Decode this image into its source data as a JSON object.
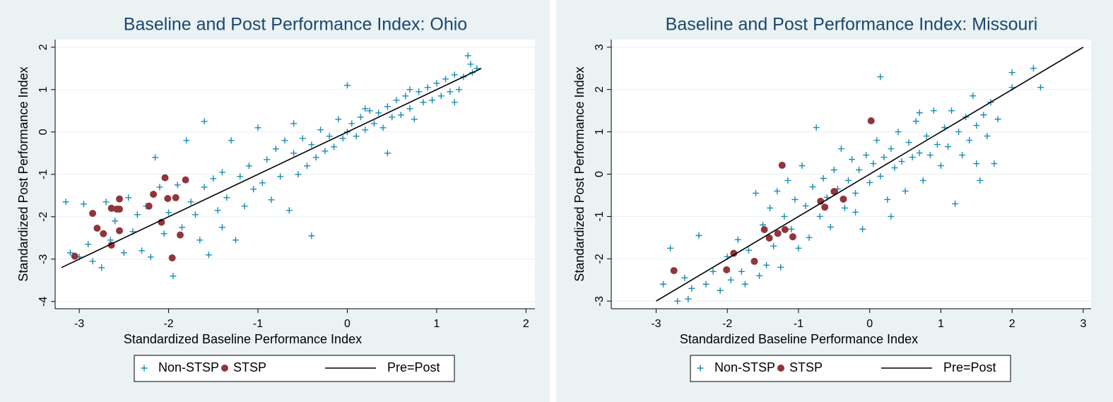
{
  "chart_data": [
    {
      "type": "scatter",
      "title": "Baseline and Post Performance Index: Ohio",
      "xlabel": "Standardized Baseline Performance Index",
      "ylabel": "Standardized Post Performance Index",
      "xlim": [
        -3.27,
        2.1
      ],
      "ylim": [
        -4.17,
        2.18
      ],
      "xticks": [
        -3,
        -2,
        -1,
        0,
        1,
        2
      ],
      "yticks": [
        -4,
        -3,
        -2,
        -1,
        0,
        1,
        2
      ],
      "grid": true,
      "legend": "bottom",
      "series": [
        {
          "name": "Non-STSP",
          "marker": "plus",
          "color": "#1a8bb3",
          "x": [
            -3.15,
            -3.1,
            -3.0,
            -2.95,
            -2.9,
            -2.85,
            -2.75,
            -2.7,
            -2.65,
            -2.6,
            -2.5,
            -2.45,
            -2.4,
            -2.35,
            -2.3,
            -2.25,
            -2.2,
            -2.15,
            -2.1,
            -2.05,
            -2.0,
            -1.95,
            -1.9,
            -1.85,
            -1.8,
            -1.75,
            -1.7,
            -1.65,
            -1.6,
            -1.55,
            -1.6,
            -1.5,
            -1.45,
            -1.4,
            -1.4,
            -1.35,
            -1.3,
            -1.25,
            -1.2,
            -1.15,
            -1.1,
            -1.05,
            -1.0,
            -0.95,
            -0.9,
            -0.85,
            -0.8,
            -0.75,
            -0.7,
            -0.65,
            -0.6,
            -0.55,
            -0.5,
            -0.45,
            -0.4,
            -0.4,
            -0.35,
            -0.3,
            -0.25,
            -0.2,
            -0.15,
            -0.1,
            -0.05,
            0,
            0,
            0.05,
            0.1,
            0.15,
            0.2,
            0.25,
            0.3,
            0.35,
            0.4,
            0.45,
            0.5,
            0.55,
            0.6,
            0.65,
            0.7,
            0.75,
            0.8,
            0.85,
            0.9,
            0.95,
            1.0,
            1.05,
            1.1,
            1.15,
            1.2,
            1.25,
            1.3,
            1.35,
            1.4,
            1.45,
            1.38,
            0.45,
            0.2,
            -0.6,
            1.2,
            0.7
          ],
          "values": [
            -1.65,
            -2.85,
            -2.95,
            -1.7,
            -2.65,
            -3.05,
            -3.2,
            -1.65,
            -2.55,
            -2.1,
            -2.85,
            -1.55,
            -2.35,
            -1.95,
            -2.8,
            -1.75,
            -2.95,
            -0.6,
            -1.3,
            -2.4,
            -1.9,
            -3.4,
            -1.25,
            -2.25,
            -0.2,
            -1.65,
            -1.95,
            -2.55,
            -1.3,
            -2.9,
            0.25,
            -1.1,
            -1.85,
            -0.95,
            -2.25,
            -1.55,
            -0.2,
            -2.55,
            -1.05,
            -1.75,
            -0.8,
            -1.35,
            0.1,
            -1.2,
            -0.65,
            -1.6,
            -0.4,
            -1.05,
            -0.2,
            -1.85,
            -0.5,
            -1.0,
            -0.15,
            -0.8,
            -2.45,
            -0.3,
            -0.6,
            0.05,
            -0.45,
            -0.1,
            -0.35,
            0.3,
            -0.15,
            1.1,
            0.0,
            0.2,
            -0.1,
            0.35,
            0.05,
            0.5,
            0.2,
            0.45,
            0.1,
            0.6,
            0.35,
            0.75,
            0.4,
            0.85,
            0.55,
            0.3,
            0.95,
            0.7,
            1.05,
            0.75,
            1.15,
            0.85,
            1.25,
            0.95,
            1.35,
            1.0,
            1.3,
            1.8,
            1.4,
            1.5,
            1.6,
            -0.5,
            0.55,
            0.2,
            0.7,
            1.0
          ]
        },
        {
          "name": "STSP",
          "marker": "circle",
          "color": "#90353b",
          "x": [
            -3.05,
            -2.85,
            -2.8,
            -2.73,
            -2.64,
            -2.64,
            -2.58,
            -2.55,
            -2.55,
            -2.55,
            -2.22,
            -2.17,
            -2.08,
            -2.04,
            -2.01,
            -1.96,
            -1.92,
            -1.87,
            -1.81
          ],
          "values": [
            -2.93,
            -1.92,
            -2.27,
            -2.4,
            -2.67,
            -1.8,
            -1.82,
            -1.82,
            -1.58,
            -2.33,
            -1.75,
            -1.47,
            -2.13,
            -1.08,
            -1.57,
            -2.97,
            -1.55,
            -2.43,
            -1.13
          ]
        },
        {
          "name": "Pre=Post",
          "marker": "line",
          "color": "#000000",
          "x": [
            -3.2,
            1.5
          ],
          "values": [
            -3.2,
            1.5
          ]
        }
      ]
    },
    {
      "type": "scatter",
      "title": "Baseline and Post Performance Index: Missouri",
      "xlabel": "Standardized Baseline Performance Index",
      "ylabel": "Standardized Post Performance Index",
      "xlim": [
        -3.63,
        3.11
      ],
      "ylim": [
        -3.18,
        3.18
      ],
      "xticks": [
        -3,
        -2,
        -1,
        0,
        1,
        2,
        3
      ],
      "yticks": [
        -3,
        -2,
        -1,
        0,
        1,
        2,
        3
      ],
      "grid": true,
      "legend": "bottom",
      "series": [
        {
          "name": "Non-STSP",
          "marker": "plus",
          "color": "#1a8bb3",
          "x": [
            -2.9,
            -2.8,
            -2.7,
            -2.6,
            -2.55,
            -2.5,
            -2.4,
            -2.3,
            -2.2,
            -2.1,
            -2.0,
            -1.95,
            -1.85,
            -1.8,
            -1.75,
            -1.7,
            -1.6,
            -1.55,
            -1.5,
            -1.45,
            -1.4,
            -1.35,
            -1.3,
            -1.25,
            -1.2,
            -1.15,
            -1.1,
            -1.05,
            -1.0,
            -0.95,
            -0.9,
            -0.85,
            -0.8,
            -0.75,
            -0.7,
            -0.65,
            -0.6,
            -0.55,
            -0.5,
            -0.45,
            -0.4,
            -0.35,
            -0.3,
            -0.25,
            -0.2,
            -0.15,
            -0.1,
            -0.05,
            0,
            0.05,
            0.1,
            0.15,
            0.15,
            0.2,
            0.25,
            0.3,
            0.35,
            0.4,
            0.45,
            0.5,
            0.55,
            0.6,
            0.65,
            0.7,
            0.75,
            0.8,
            0.85,
            0.9,
            0.95,
            1.0,
            1.05,
            1.1,
            1.15,
            1.2,
            1.25,
            1.3,
            1.35,
            1.4,
            1.45,
            1.5,
            1.55,
            1.6,
            1.65,
            1.7,
            1.75,
            1.8,
            2.0,
            2.0,
            2.3,
            2.4,
            1.5,
            0.3,
            -0.2,
            0.7
          ],
          "values": [
            -2.6,
            -1.75,
            -3.0,
            -2.45,
            -2.95,
            -2.7,
            -1.45,
            -2.6,
            -2.3,
            -2.75,
            -1.95,
            -2.5,
            -1.55,
            -2.3,
            -2.6,
            -1.8,
            -0.45,
            -2.4,
            -1.2,
            -2.15,
            -0.8,
            -1.7,
            -0.4,
            -2.2,
            -1.0,
            -0.15,
            -1.3,
            -0.6,
            -1.75,
            0.2,
            -0.75,
            -1.5,
            -0.3,
            1.1,
            -1.0,
            -0.1,
            -0.55,
            -1.25,
            0.1,
            -0.35,
            0.6,
            -0.8,
            -0.15,
            0.35,
            -0.45,
            0.1,
            -1.3,
            0.45,
            -0.2,
            0.25,
            0.8,
            2.3,
            -0.05,
            0.4,
            -0.6,
            0.6,
            0.15,
            1.0,
            0.3,
            -0.4,
            0.75,
            0.4,
            1.25,
            0.5,
            -0.15,
            0.9,
            0.45,
            1.5,
            0.7,
            0.2,
            1.1,
            0.65,
            1.5,
            -0.7,
            1.0,
            0.45,
            1.35,
            0.8,
            1.85,
            1.15,
            -0.15,
            1.4,
            0.9,
            1.7,
            0.25,
            1.3,
            2.05,
            2.4,
            2.5,
            2.05,
            0.25,
            -1.0,
            -0.9,
            1.45
          ]
        },
        {
          "name": "STSP",
          "marker": "circle",
          "color": "#90353b",
          "x": [
            -2.75,
            -2.01,
            -1.91,
            -1.62,
            -1.48,
            -1.41,
            -1.29,
            -1.23,
            -1.19,
            -1.08,
            -0.69,
            -0.63,
            -0.5,
            -0.37,
            0.02
          ],
          "values": [
            -2.28,
            -2.26,
            -1.87,
            -2.06,
            -1.31,
            -1.51,
            -1.4,
            0.21,
            -1.31,
            -1.48,
            -0.64,
            -0.78,
            -0.41,
            -0.59,
            1.26
          ]
        },
        {
          "name": "Pre=Post",
          "marker": "line",
          "color": "#000000",
          "x": [
            -3,
            3
          ],
          "values": [
            -3,
            3
          ]
        }
      ]
    }
  ]
}
